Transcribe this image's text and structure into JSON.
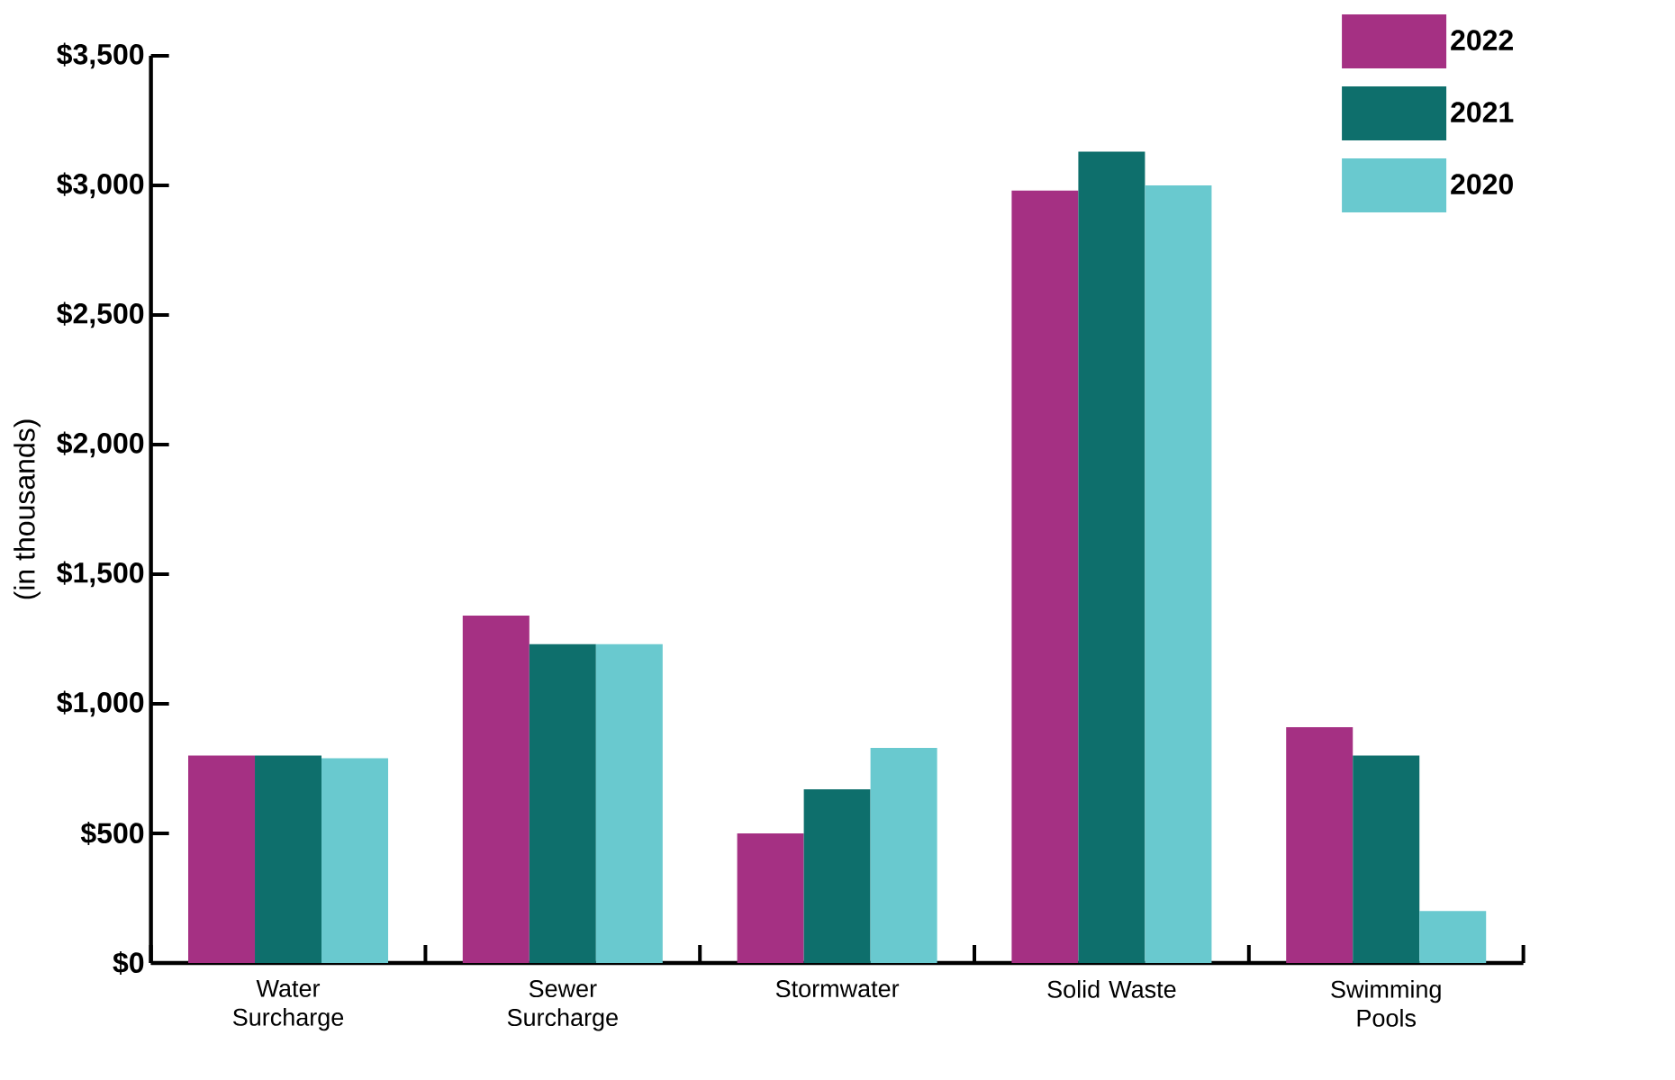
{
  "chart_data": {
    "type": "bar",
    "ylabel": "(in thousands)",
    "categories": [
      "Water Surcharge",
      "Sewer Surcharge",
      "Stormwater",
      "Solid Waste",
      "Swimming Pools"
    ],
    "series": [
      {
        "name": "2022",
        "color": "#a53083",
        "values": [
          800,
          1340,
          500,
          2980,
          910
        ]
      },
      {
        "name": "2021",
        "color": "#0e6f6c",
        "values": [
          800,
          1230,
          670,
          3130,
          800
        ]
      },
      {
        "name": "2020",
        "color": "#69c9cf",
        "values": [
          790,
          1230,
          830,
          3000,
          200
        ]
      }
    ],
    "ylim": [
      0,
      3500
    ],
    "yticks": [
      {
        "value": 0,
        "label": "$0"
      },
      {
        "value": 500,
        "label": "$500"
      },
      {
        "value": 1000,
        "label": "$1,000"
      },
      {
        "value": 1500,
        "label": "$1,500"
      },
      {
        "value": 2000,
        "label": "$2,000"
      },
      {
        "value": 2500,
        "label": "$2,500"
      },
      {
        "value": 3000,
        "label": "$3,000"
      },
      {
        "value": 3500,
        "label": "$3,500"
      }
    ],
    "grid": false,
    "legend": "top right"
  }
}
